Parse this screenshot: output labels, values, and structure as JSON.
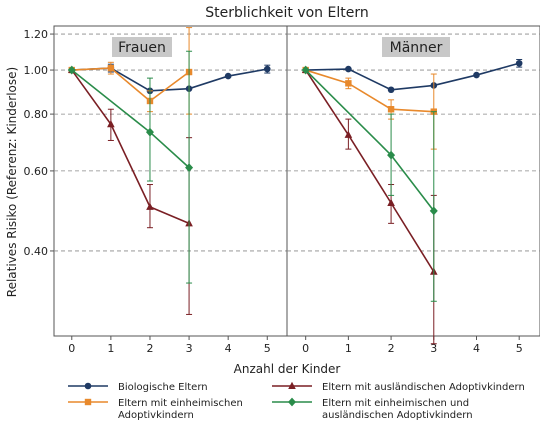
{
  "chart_data": {
    "type": "line",
    "title": "Sterblichkeit von Eltern",
    "xlabel": "Anzahl der Kinder",
    "ylabel": "Relatives Risiko (Referenz: Kinderlose)",
    "y_scale": "log",
    "ylim": [
      0.26,
      1.25
    ],
    "xlim": [
      -0.25,
      5.3
    ],
    "y_ticks": [
      "1.20",
      "1.00",
      "0.80",
      "0.60",
      "0.40"
    ],
    "y_tick_values": [
      1.2,
      1.0,
      0.8,
      0.6,
      0.4
    ],
    "x_ticks": [
      "0",
      "1",
      "2",
      "3",
      "4",
      "5"
    ],
    "grid": "horizontal dashed",
    "legend_position": "bottom",
    "panels": [
      {
        "label": "Frauen",
        "series": [
          {
            "name": "Biologische Eltern",
            "color": "#1f3a64",
            "marker": "circle",
            "points": [
              {
                "x": 0,
                "y": 1.0
              },
              {
                "x": 1,
                "y": 1.01,
                "lo": 0.99,
                "hi": 1.03
              },
              {
                "x": 2,
                "y": 0.9
              },
              {
                "x": 3,
                "y": 0.91
              },
              {
                "x": 4,
                "y": 0.97
              },
              {
                "x": 5,
                "y": 1.005,
                "lo": 0.985,
                "hi": 1.025
              }
            ]
          },
          {
            "name": "Eltern mit einheimischen Adoptivkindern",
            "color": "#e8892c",
            "marker": "square",
            "points": [
              {
                "x": 0,
                "y": 1.0
              },
              {
                "x": 1,
                "y": 1.01,
                "lo": 0.98,
                "hi": 1.04
              },
              {
                "x": 2,
                "y": 0.855,
                "lo": 0.81,
                "hi": 0.9
              },
              {
                "x": 3,
                "y": 0.99,
                "lo": 0.8,
                "hi": 1.24
              }
            ]
          },
          {
            "name": "Eltern mit ausländischen Adoptivkindern",
            "color": "#7a1f24",
            "marker": "triangle",
            "points": [
              {
                "x": 0,
                "y": 1.0
              },
              {
                "x": 1,
                "y": 0.76,
                "lo": 0.7,
                "hi": 0.82
              },
              {
                "x": 2,
                "y": 0.5,
                "lo": 0.45,
                "hi": 0.56
              },
              {
                "x": 3,
                "y": 0.46,
                "lo": 0.29,
                "hi": 0.71
              }
            ]
          },
          {
            "name": "Eltern mit einheimischen und ausländischen Adoptivkindern",
            "color": "#2a8c4a",
            "marker": "diamond",
            "points": [
              {
                "x": 0,
                "y": 1.0
              },
              {
                "x": 2,
                "y": 0.73,
                "lo": 0.57,
                "hi": 0.96
              },
              {
                "x": 3,
                "y": 0.61,
                "lo": 0.34,
                "hi": 1.1
              }
            ]
          }
        ]
      },
      {
        "label": "Männer",
        "series": [
          {
            "name": "Biologische Eltern",
            "color": "#1f3a64",
            "marker": "circle",
            "points": [
              {
                "x": 0,
                "y": 1.0
              },
              {
                "x": 1,
                "y": 1.005
              },
              {
                "x": 2,
                "y": 0.905
              },
              {
                "x": 3,
                "y": 0.925
              },
              {
                "x": 4,
                "y": 0.975
              },
              {
                "x": 5,
                "y": 1.035,
                "lo": 1.015,
                "hi": 1.055
              }
            ]
          },
          {
            "name": "Eltern mit einheimischen Adoptivkindern",
            "color": "#e8892c",
            "marker": "square",
            "points": [
              {
                "x": 0,
                "y": 1.0
              },
              {
                "x": 1,
                "y": 0.935,
                "lo": 0.91,
                "hi": 0.96
              },
              {
                "x": 2,
                "y": 0.82,
                "lo": 0.78,
                "hi": 0.86
              },
              {
                "x": 3,
                "y": 0.81,
                "lo": 0.67,
                "hi": 0.98
              }
            ]
          },
          {
            "name": "Eltern mit ausländischen Adoptivkindern",
            "color": "#7a1f24",
            "marker": "triangle",
            "points": [
              {
                "x": 0,
                "y": 1.0
              },
              {
                "x": 1,
                "y": 0.72,
                "lo": 0.67,
                "hi": 0.78
              },
              {
                "x": 2,
                "y": 0.51,
                "lo": 0.46,
                "hi": 0.56
              },
              {
                "x": 3,
                "y": 0.36,
                "lo": 0.25,
                "hi": 0.53
              }
            ]
          },
          {
            "name": "Eltern mit einheimischen und ausländischen Adoptivkindern",
            "color": "#2a8c4a",
            "marker": "diamond",
            "points": [
              {
                "x": 0,
                "y": 1.0
              },
              {
                "x": 2,
                "y": 0.65,
                "lo": 0.53,
                "hi": 0.8
              },
              {
                "x": 3,
                "y": 0.49,
                "lo": 0.31,
                "hi": 0.81
              }
            ]
          }
        ]
      }
    ],
    "legend": [
      {
        "name": "Biologische Eltern",
        "marker": "circle",
        "color": "#1f3a64",
        "lines": [
          "Biologische Eltern"
        ]
      },
      {
        "name": "Eltern mit ausländischen Adoptivkindern",
        "marker": "triangle",
        "color": "#7a1f24",
        "lines": [
          "Eltern mit ausländischen Adoptivkindern"
        ]
      },
      {
        "name": "Eltern mit einheimischen Adoptivkindern",
        "marker": "square",
        "color": "#e8892c",
        "lines": [
          "Eltern mit einheimischen",
          "Adoptivkindern"
        ]
      },
      {
        "name": "Eltern mit einheimischen und ausländischen Adoptivkindern",
        "marker": "diamond",
        "color": "#2a8c4a",
        "lines": [
          "Eltern mit einheimischen und",
          "ausländischen Adoptivkindern"
        ]
      }
    ]
  }
}
